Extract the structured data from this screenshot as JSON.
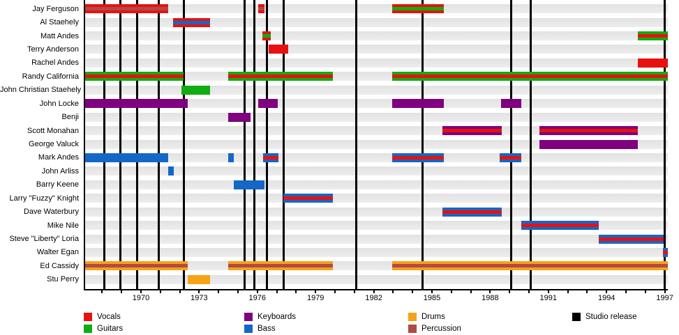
{
  "chart_data": {
    "type": "timeline",
    "description": "Band members timeline gantt chart with studio release lines",
    "axis": {
      "x_start": 1967.05,
      "x_end": 1997.15,
      "tick_every_years": 1,
      "label_years": [
        1970,
        1973,
        1976,
        1979,
        1982,
        1985,
        1988,
        1991,
        1994,
        1997
      ]
    },
    "colors": {
      "vocals": "#e8110f",
      "guitars": "#10ad10",
      "keyboards": "#7f017f",
      "bass": "#1467c6",
      "drums": "#f7a115",
      "percussion": "#b04948",
      "release": "#000000",
      "row_stripe": "#e7e7e7"
    },
    "members": [
      {
        "name": "Jay Ferguson",
        "bars": [
          {
            "from": 1967.1,
            "to": 1971.4,
            "role": "vocals",
            "stripe": "percussion"
          },
          {
            "from": 1976.05,
            "to": 1976.35,
            "role": "vocals",
            "stripe": "percussion"
          },
          {
            "from": 1982.95,
            "to": 1985.6,
            "role": "vocals",
            "stripe": "guitars"
          }
        ]
      },
      {
        "name": "Al Staehely",
        "bars": [
          {
            "from": 1971.65,
            "to": 1973.55,
            "role": "vocals",
            "stripe": "bass"
          }
        ]
      },
      {
        "name": "Matt Andes",
        "bars": [
          {
            "from": 1976.25,
            "to": 1976.7,
            "role": "vocals",
            "stripe": "guitars"
          },
          {
            "from": 1995.6,
            "to": 1997.15,
            "role": "guitars",
            "stripe": "vocals"
          }
        ]
      },
      {
        "name": "Terry Anderson",
        "bars": [
          {
            "from": 1976.6,
            "to": 1977.6,
            "role": "vocals",
            "stripe": null
          }
        ]
      },
      {
        "name": "Rachel Andes",
        "bars": [
          {
            "from": 1995.6,
            "to": 1997.15,
            "role": "vocals",
            "stripe": null
          }
        ]
      },
      {
        "name": "Randy California",
        "bars": [
          {
            "from": 1967.1,
            "to": 1972.2,
            "role": "guitars",
            "stripe": "vocals"
          },
          {
            "from": 1974.5,
            "to": 1979.9,
            "role": "guitars",
            "stripe": "vocals"
          },
          {
            "from": 1982.95,
            "to": 1997.15,
            "role": "guitars",
            "stripe": "vocals"
          }
        ]
      },
      {
        "name": "John Christian Staehely",
        "bars": [
          {
            "from": 1972.1,
            "to": 1973.55,
            "role": "guitars",
            "stripe": null
          }
        ]
      },
      {
        "name": "John Locke",
        "bars": [
          {
            "from": 1967.1,
            "to": 1972.4,
            "role": "keyboards",
            "stripe": null
          },
          {
            "from": 1976.05,
            "to": 1977.05,
            "role": "keyboards",
            "stripe": null
          },
          {
            "from": 1982.95,
            "to": 1985.6,
            "role": "keyboards",
            "stripe": null
          },
          {
            "from": 1988.55,
            "to": 1989.6,
            "role": "keyboards",
            "stripe": null
          }
        ]
      },
      {
        "name": "Benji",
        "bars": [
          {
            "from": 1974.5,
            "to": 1975.65,
            "role": "keyboards",
            "stripe": null
          }
        ]
      },
      {
        "name": "Scott Monahan",
        "bars": [
          {
            "from": 1985.55,
            "to": 1988.6,
            "role": "keyboards",
            "stripe": "vocals"
          },
          {
            "from": 1990.55,
            "to": 1995.6,
            "role": "keyboards",
            "stripe": "vocals"
          }
        ]
      },
      {
        "name": "George Valuck",
        "bars": [
          {
            "from": 1990.55,
            "to": 1995.6,
            "role": "keyboards",
            "stripe": null
          }
        ]
      },
      {
        "name": "Mark Andes",
        "bars": [
          {
            "from": 1967.1,
            "to": 1971.4,
            "role": "bass",
            "stripe": null
          },
          {
            "from": 1974.5,
            "to": 1974.8,
            "role": "bass",
            "stripe": null
          },
          {
            "from": 1976.3,
            "to": 1977.1,
            "role": "bass",
            "stripe": "vocals"
          },
          {
            "from": 1982.95,
            "to": 1985.6,
            "role": "bass",
            "stripe": "vocals"
          },
          {
            "from": 1988.5,
            "to": 1989.6,
            "role": "bass",
            "stripe": "vocals"
          }
        ]
      },
      {
        "name": "John Arliss",
        "bars": [
          {
            "from": 1971.4,
            "to": 1971.7,
            "role": "bass",
            "stripe": null
          }
        ]
      },
      {
        "name": "Barry Keene",
        "bars": [
          {
            "from": 1974.8,
            "to": 1976.35,
            "role": "bass",
            "stripe": null
          }
        ]
      },
      {
        "name": "Larry \"Fuzzy\" Knight",
        "bars": [
          {
            "from": 1977.35,
            "to": 1979.9,
            "role": "bass",
            "stripe": "vocals"
          }
        ]
      },
      {
        "name": "Dave Waterbury",
        "bars": [
          {
            "from": 1985.55,
            "to": 1988.6,
            "role": "bass",
            "stripe": "vocals"
          }
        ]
      },
      {
        "name": "Mike Nile",
        "bars": [
          {
            "from": 1989.6,
            "to": 1993.6,
            "role": "bass",
            "stripe": "vocals"
          }
        ]
      },
      {
        "name": "Steve \"Liberty\" Loria",
        "bars": [
          {
            "from": 1993.6,
            "to": 1996.95,
            "role": "bass",
            "stripe": "vocals"
          }
        ]
      },
      {
        "name": "Walter Egan",
        "bars": [
          {
            "from": 1996.9,
            "to": 1997.15,
            "role": "bass",
            "stripe": "vocals"
          }
        ]
      },
      {
        "name": "Ed Cassidy",
        "bars": [
          {
            "from": 1967.1,
            "to": 1972.4,
            "role": "drums",
            "stripe": "percussion"
          },
          {
            "from": 1974.5,
            "to": 1979.9,
            "role": "drums",
            "stripe": "percussion"
          },
          {
            "from": 1982.95,
            "to": 1997.15,
            "role": "drums",
            "stripe": "percussion"
          }
        ]
      },
      {
        "name": "Stu Perry",
        "bars": [
          {
            "from": 1972.4,
            "to": 1973.55,
            "role": "drums",
            "stripe": null
          }
        ]
      }
    ],
    "releases": [
      1968.1,
      1968.95,
      1969.8,
      1970.9,
      1972.2,
      1975.35,
      1975.85,
      1976.5,
      1977.35,
      1981.1,
      1984.5,
      1989.1,
      1990.1,
      1997.0
    ],
    "legend": {
      "items": [
        {
          "label": "Vocals",
          "color": "vocals",
          "col": 0,
          "row": 0
        },
        {
          "label": "Guitars",
          "color": "guitars",
          "col": 0,
          "row": 1
        },
        {
          "label": "Keyboards",
          "color": "keyboards",
          "col": 1,
          "row": 0
        },
        {
          "label": "Bass",
          "color": "bass",
          "col": 1,
          "row": 1
        },
        {
          "label": "Drums",
          "color": "drums",
          "col": 2,
          "row": 0
        },
        {
          "label": "Percussion",
          "color": "percussion",
          "col": 2,
          "row": 1
        },
        {
          "label": "Studio release",
          "color": "release",
          "col": 3,
          "row": 0
        }
      ]
    }
  }
}
